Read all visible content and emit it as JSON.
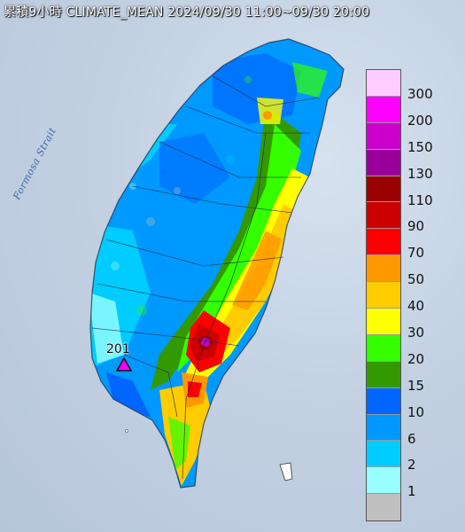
{
  "title": "累積9小時 CLIMATE_MEAN 2024/09/30 11:00~09/30 20:00",
  "map_labels": {
    "strait": "Formosa Strait",
    "max_value": "201"
  },
  "legend": {
    "items": [
      {
        "label": "300",
        "color": "#ffccff"
      },
      {
        "label": "200",
        "color": "#ff00ff"
      },
      {
        "label": "150",
        "color": "#cc00cc"
      },
      {
        "label": "130",
        "color": "#990099"
      },
      {
        "label": "110",
        "color": "#990000"
      },
      {
        "label": "90",
        "color": "#cc0000"
      },
      {
        "label": "70",
        "color": "#ff0000"
      },
      {
        "label": "50",
        "color": "#ff9900"
      },
      {
        "label": "40",
        "color": "#ffcc00"
      },
      {
        "label": "30",
        "color": "#ffff00"
      },
      {
        "label": "20",
        "color": "#33ff00"
      },
      {
        "label": "15",
        "color": "#339900"
      },
      {
        "label": "10",
        "color": "#0066ff"
      },
      {
        "label": "6",
        "color": "#0099ff"
      },
      {
        "label": "2",
        "color": "#00ccff"
      },
      {
        "label": "1",
        "color": "#99ffff"
      },
      {
        "label": "",
        "color": "#c0c0c0"
      }
    ]
  }
}
